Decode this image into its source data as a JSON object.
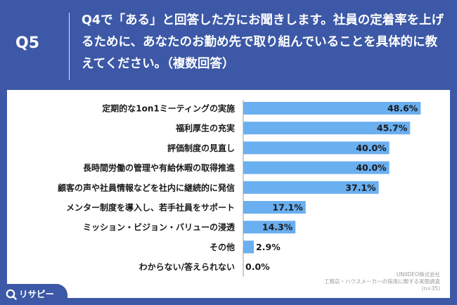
{
  "header": {
    "qnum": "Q5",
    "question": "Q4で「ある」と回答した方にお聞きします。社員の定着率を上げるために、あなたのお勤め先で取り組んでいることを具体的に教えてください。（複数回答）"
  },
  "source": {
    "company": "UNIIDEO株式会社",
    "survey": "工務店・ハウスメーカーの採用に関する実態調査",
    "n": "(n=35)"
  },
  "logo": {
    "text": "リサピー",
    "icon": "magnifier-icon"
  },
  "colors": {
    "background": "#3c58a6",
    "bar": "#6aaff0",
    "panel": "#ffffff"
  },
  "chart_data": {
    "type": "bar",
    "orientation": "horizontal",
    "categories": [
      "定期的な1on1ミーティングの実施",
      "福利厚生の充実",
      "評価制度の見直し",
      "長時間労働の管理や有給休暇の取得推進",
      "顧客の声や社員情報などを社内に継続的に発信",
      "メンター制度を導入し、若手社員をサポート",
      "ミッション・ビジョン・バリューの浸透",
      "その他",
      "わからない/答えられない"
    ],
    "values": [
      48.6,
      45.7,
      40.0,
      40.0,
      37.1,
      17.1,
      14.3,
      2.9,
      0.0
    ],
    "value_labels": [
      "48.6%",
      "45.7%",
      "40.0%",
      "40.0%",
      "37.1%",
      "17.1%",
      "14.3%",
      "2.9%",
      "0.0%"
    ],
    "xlim": [
      0,
      52
    ],
    "grid": false,
    "legend": "none"
  }
}
